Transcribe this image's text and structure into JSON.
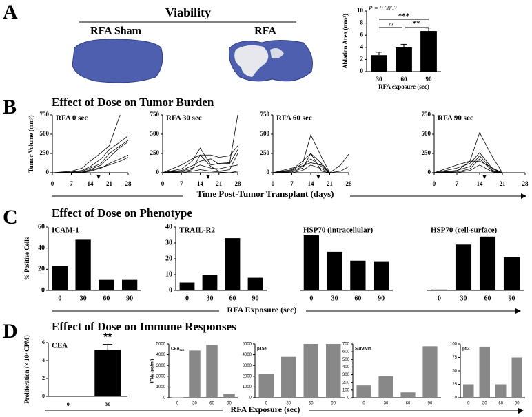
{
  "figure": {
    "panel_A": {
      "letter": "A",
      "heading": "Viability",
      "images": [
        "RFA Sham",
        "RFA"
      ]
    },
    "panel_B": {
      "letter": "B",
      "heading": "Effect of Dose on Tumor Burden",
      "xlabel": "Time Post-Tumor Transplant (days)"
    },
    "panel_C": {
      "letter": "C",
      "heading": "Effect of Dose on Phenotype",
      "xlabel": "RFA Exposure (sec)"
    },
    "panel_D": {
      "letter": "D",
      "heading": "Effect of Dose on Immune Responses",
      "xlabel": "RFA Exposure (sec)"
    }
  },
  "chart_data": [
    {
      "type": "bar",
      "ylabel": "Ablation Area (mm²)",
      "xlabel": "RFA exposure (sec)",
      "categories": [
        "30",
        "60",
        "90"
      ],
      "values": [
        2.7,
        4.0,
        6.7
      ],
      "errors": [
        0.5,
        0.5,
        0.5
      ],
      "color": "#000000",
      "ylim": [
        0,
        10
      ],
      "yticks": [
        0,
        2,
        4,
        6,
        8,
        10
      ],
      "annotations": [
        "P = 0.0003",
        "***",
        "ns",
        "**"
      ]
    },
    {
      "type": "line",
      "title": "RFA 0 sec",
      "ylabel": "Tumor Volume (mm³)",
      "x": [
        0,
        7,
        11,
        14,
        18,
        21,
        25,
        28
      ],
      "xlim": [
        0,
        28
      ],
      "xticks": [
        0,
        7,
        14,
        21,
        28
      ],
      "ylim": [
        0,
        750
      ],
      "yticks": [
        0,
        250,
        500,
        750
      ],
      "series": [
        {
          "color": "#000000",
          "values": [
            0,
            20,
            60,
            150,
            260,
            350,
            750,
            null
          ]
        },
        {
          "color": "#000000",
          "values": [
            0,
            10,
            30,
            80,
            180,
            300,
            400,
            480
          ]
        },
        {
          "color": "#000000",
          "values": [
            0,
            5,
            20,
            60,
            120,
            250,
            350,
            420
          ]
        },
        {
          "color": "#000000",
          "values": [
            0,
            0,
            10,
            40,
            100,
            200,
            330,
            400
          ]
        },
        {
          "color": "#000000",
          "values": [
            0,
            0,
            0,
            20,
            60,
            120,
            180,
            230
          ]
        },
        {
          "color": "#000000",
          "values": [
            0,
            0,
            5,
            30,
            70,
            100,
            150,
            200
          ]
        }
      ]
    },
    {
      "type": "line",
      "title": "RFA 30 sec",
      "x": [
        0,
        7,
        11,
        14,
        18,
        21,
        25,
        28
      ],
      "xlim": [
        0,
        28
      ],
      "xticks": [
        0,
        7,
        14,
        21,
        28
      ],
      "ylim": [
        0,
        750
      ],
      "yticks": [
        0,
        250,
        500,
        750
      ],
      "series": [
        {
          "color": "#000000",
          "values": [
            0,
            50,
            150,
            320,
            100,
            120,
            130,
            750
          ]
        },
        {
          "color": "#000000",
          "values": [
            0,
            100,
            180,
            230,
            230,
            200,
            220,
            350
          ]
        },
        {
          "color": "#000000",
          "values": [
            0,
            30,
            90,
            150,
            180,
            110,
            120,
            300
          ]
        },
        {
          "color": "#000000",
          "values": [
            0,
            20,
            60,
            100,
            60,
            50,
            80,
            100
          ]
        },
        {
          "color": "#000000",
          "values": [
            0,
            10,
            40,
            230,
            80,
            20,
            40,
            250
          ]
        },
        {
          "color": "#000000",
          "values": [
            0,
            0,
            20,
            40,
            20,
            10,
            0,
            20
          ]
        }
      ]
    },
    {
      "type": "line",
      "title": "RFA 60 sec",
      "x": [
        0,
        7,
        11,
        14,
        18,
        21,
        25,
        28
      ],
      "xlim": [
        0,
        28
      ],
      "xticks": [
        0,
        7,
        14,
        21,
        28
      ],
      "ylim": [
        0,
        750
      ],
      "yticks": [
        0,
        250,
        500,
        750
      ],
      "series": [
        {
          "color": "#000000",
          "values": [
            0,
            30,
            120,
            490,
            200,
            0,
            null,
            null
          ]
        },
        {
          "color": "#000000",
          "values": [
            0,
            40,
            150,
            250,
            120,
            0,
            null,
            null
          ]
        },
        {
          "color": "#000000",
          "values": [
            0,
            20,
            80,
            180,
            80,
            0,
            100,
            240
          ]
        },
        {
          "color": "#000000",
          "values": [
            0,
            10,
            60,
            250,
            20,
            0,
            null,
            null
          ]
        },
        {
          "color": "#000000",
          "values": [
            0,
            60,
            90,
            130,
            100,
            0,
            null,
            null
          ]
        },
        {
          "color": "#000000",
          "values": [
            0,
            0,
            30,
            100,
            50,
            0,
            20,
            80
          ]
        }
      ]
    },
    {
      "type": "line",
      "title": "RFA 90 sec",
      "x": [
        0,
        7,
        11,
        14,
        18,
        21,
        25,
        28
      ],
      "xlim": [
        0,
        28
      ],
      "xticks": [
        0,
        7,
        14,
        21,
        28
      ],
      "ylim": [
        0,
        750
      ],
      "yticks": [
        0,
        250,
        500,
        750
      ],
      "series": [
        {
          "color": "#000000",
          "values": [
            0,
            20,
            150,
            520,
            200,
            0,
            0,
            0
          ]
        },
        {
          "color": "#000000",
          "values": [
            0,
            60,
            120,
            260,
            50,
            0,
            0,
            0
          ]
        },
        {
          "color": "#000000",
          "values": [
            0,
            30,
            80,
            220,
            30,
            0,
            0,
            0
          ]
        },
        {
          "color": "#000000",
          "values": [
            0,
            100,
            150,
            150,
            60,
            0,
            0,
            0
          ]
        },
        {
          "color": "#000000",
          "values": [
            0,
            10,
            50,
            180,
            20,
            0,
            0,
            0
          ]
        },
        {
          "color": "#000000",
          "values": [
            0,
            0,
            30,
            100,
            10,
            0,
            0,
            0
          ]
        }
      ]
    },
    {
      "type": "bar",
      "title": "ICAM-1",
      "ylabel": "% Positive Cells",
      "categories": [
        "0",
        "30",
        "60",
        "90"
      ],
      "values": [
        23,
        48,
        10,
        10
      ],
      "color": "#000000",
      "ylim": [
        0,
        60
      ],
      "yticks": [
        0,
        20,
        40,
        60
      ]
    },
    {
      "type": "bar",
      "title": "TRAIL-R2",
      "categories": [
        "0",
        "30",
        "60",
        "90"
      ],
      "values": [
        5,
        10,
        33,
        8
      ],
      "color": "#000000",
      "ylim": [
        0,
        40
      ],
      "yticks": [
        0,
        10,
        20,
        30,
        40
      ]
    },
    {
      "type": "bar",
      "title": "HSP70 (intracellular)",
      "categories": [
        "0",
        "30",
        "60",
        "90"
      ],
      "values": [
        87,
        61,
        47,
        45
      ],
      "color": "#000000",
      "ylim": [
        0,
        100
      ]
    },
    {
      "type": "bar",
      "title": "HSP70 (cell-surface)",
      "categories": [
        "0",
        "30",
        "60",
        "90"
      ],
      "values": [
        0.5,
        29,
        34,
        21
      ],
      "color": "#000000",
      "ylim": [
        0,
        40
      ]
    },
    {
      "type": "bar",
      "title": "CEA",
      "ylabel": "Proliferation (× 10³ CPM)",
      "categories": [
        "0",
        "30"
      ],
      "values": [
        0,
        5.2
      ],
      "errors": [
        0,
        0.6
      ],
      "color": "#000000",
      "ylim": [
        0,
        6
      ],
      "yticks": [
        0,
        2,
        4,
        6
      ],
      "annotations": [
        "**"
      ]
    },
    {
      "type": "bar",
      "title": "CEA",
      "title_subscript": "526",
      "ylabel": "IFNγ (pg/ml)",
      "categories": [
        "0",
        "30",
        "60",
        "90"
      ],
      "values": [
        30,
        4400,
        4900,
        350
      ],
      "color": "#888888",
      "ylim": [
        0,
        5000
      ],
      "yticks": [
        0,
        1000,
        2000,
        3000,
        4000,
        5000
      ]
    },
    {
      "type": "bar",
      "title": "p15e",
      "categories": [
        "0",
        "30",
        "60",
        "90"
      ],
      "values": [
        2200,
        3800,
        5000,
        5000
      ],
      "color": "#888888",
      "ylim": [
        0,
        5000
      ],
      "yticks": [
        0,
        1000,
        2000,
        3000,
        4000,
        5000
      ]
    },
    {
      "type": "bar",
      "title": "Survivin",
      "categories": [
        "0",
        "30",
        "60",
        "90"
      ],
      "values": [
        160,
        280,
        70,
        670
      ],
      "color": "#888888",
      "ylim": [
        0,
        700
      ],
      "yticks": [
        0,
        100,
        200,
        300,
        400,
        500,
        600,
        700
      ]
    },
    {
      "type": "bar",
      "title": "p53",
      "categories": [
        "0",
        "30",
        "60",
        "90"
      ],
      "values": [
        25,
        95,
        25,
        75
      ],
      "color": "#888888",
      "ylim": [
        0,
        100
      ],
      "yticks": [
        0,
        25,
        50,
        75,
        100
      ]
    }
  ]
}
